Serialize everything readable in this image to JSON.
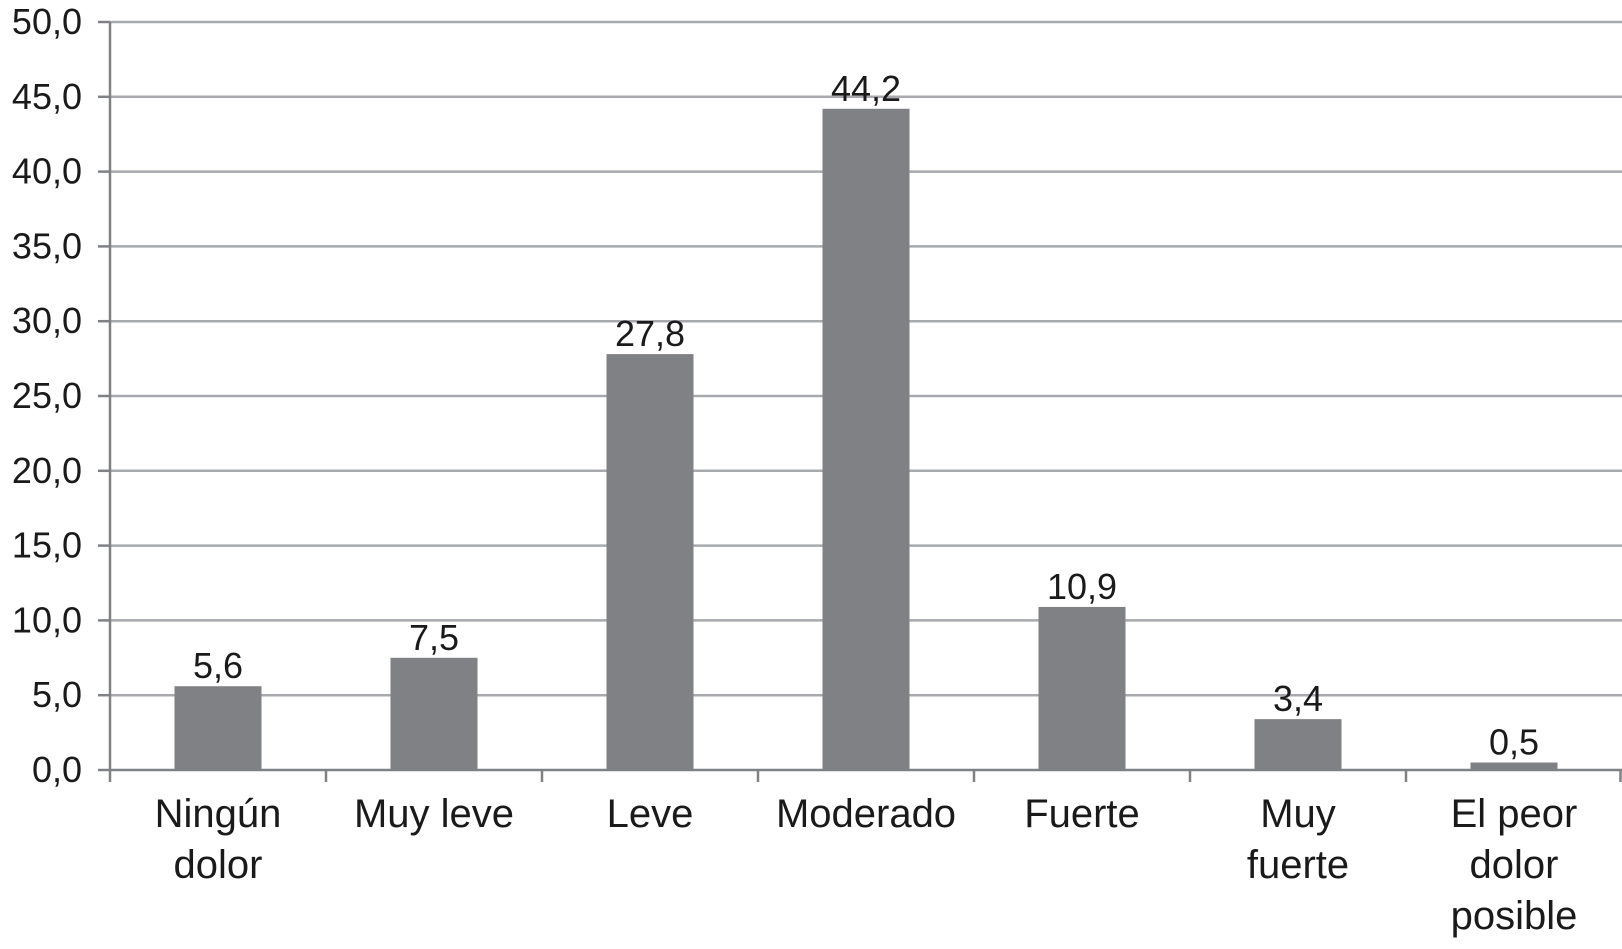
{
  "chart_data": {
    "type": "bar",
    "title": "",
    "xlabel": "",
    "ylabel": "",
    "categories": [
      [
        "Ningún",
        "dolor"
      ],
      [
        "Muy leve"
      ],
      [
        "Leve"
      ],
      [
        "Moderado"
      ],
      [
        "Fuerte"
      ],
      [
        "Muy",
        "fuerte"
      ],
      [
        "El peor",
        "dolor",
        "posible"
      ]
    ],
    "values": [
      5.6,
      7.5,
      27.8,
      44.2,
      10.9,
      3.4,
      0.5
    ],
    "value_labels": [
      "5,6",
      "7,5",
      "27,8",
      "44,2",
      "10,9",
      "3,4",
      "0,5"
    ],
    "ylim": [
      0,
      50
    ],
    "yticks": [
      0,
      5,
      10,
      15,
      20,
      25,
      30,
      35,
      40,
      45,
      50
    ],
    "ytick_labels": [
      "0,0",
      "5,0",
      "10,0",
      "15,0",
      "20,0",
      "25,0",
      "30,0",
      "35,0",
      "40,0",
      "45,0",
      "50,0"
    ],
    "grid": true,
    "legend": "none",
    "colors": {
      "bar": "#808184",
      "grid": "#a7a9ac",
      "axis": "#808184",
      "text": "#1a1a1a"
    }
  }
}
